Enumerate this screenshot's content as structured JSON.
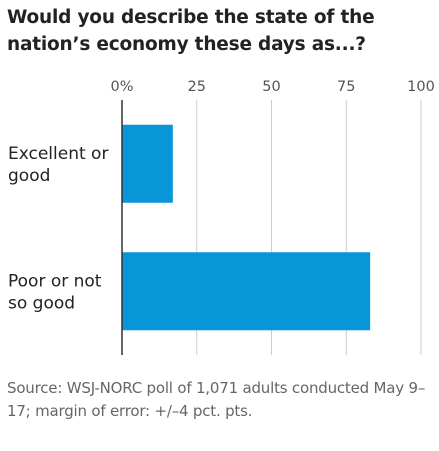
{
  "chart_data": {
    "type": "bar",
    "orientation": "horizontal",
    "title": "Would you describe the state of the nation’s economy these days as...?",
    "categories": [
      [
        "Excellent or",
        "good"
      ],
      [
        "Poor or not",
        "so good"
      ]
    ],
    "values": [
      17,
      83
    ],
    "xlim": [
      0,
      100
    ],
    "ticks": [
      0,
      25,
      50,
      75,
      100
    ],
    "tick_labels": [
      "0%",
      "25",
      "50",
      "75",
      "100"
    ],
    "gridlines": true,
    "bar_color": "#0996d8",
    "axis_color": "#333333",
    "grid_color": "#cccccc",
    "source": "Source: WSJ-NORC poll of 1,071 adults conducted May 9–17; margin of error: +/–4 pct. pts."
  }
}
